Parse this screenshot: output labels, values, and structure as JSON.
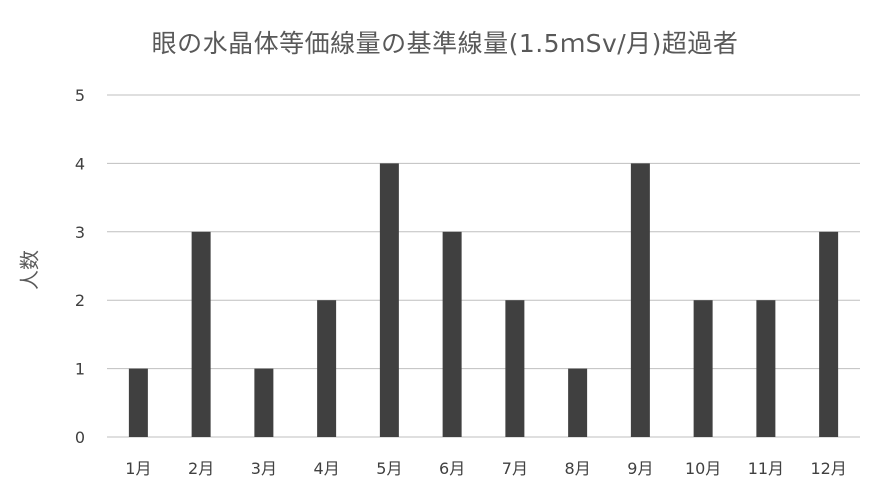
{
  "chart_data": {
    "type": "bar",
    "title": "眼の水晶体等価線量の基準線量(1.5ｍSv/月)超過者",
    "xlabel": "",
    "ylabel": "人数",
    "categories": [
      "1月",
      "2月",
      "3月",
      "4月",
      "5月",
      "6月",
      "7月",
      "8月",
      "9月",
      "10月",
      "11月",
      "12月"
    ],
    "values": [
      1,
      3,
      1,
      2,
      4,
      3,
      2,
      1,
      4,
      2,
      2,
      3
    ],
    "ylim": [
      0,
      5
    ],
    "yticks": [
      "0",
      "1",
      "2",
      "3",
      "4",
      "5"
    ],
    "grid": true,
    "legend": "none",
    "bar_color": "#404040",
    "grid_color": "#bfbfbf"
  }
}
